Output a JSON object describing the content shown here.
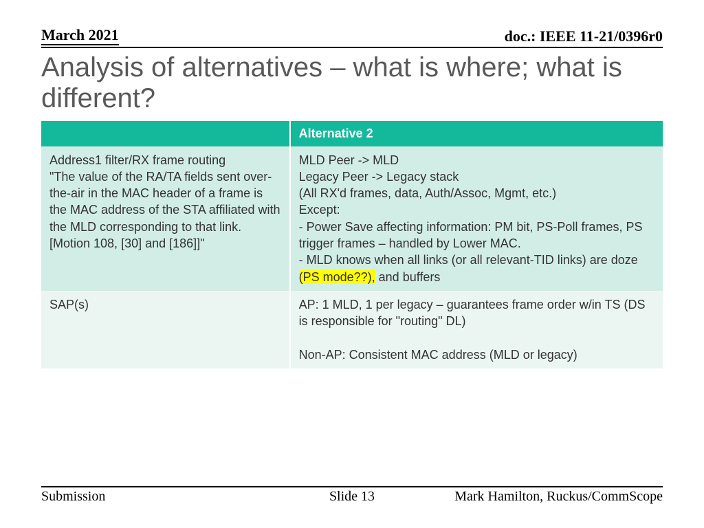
{
  "header": {
    "date": "March 2021",
    "doc": "doc.: IEEE 11-21/0396r0"
  },
  "title": "Analysis of alternatives – what is where; what is different?",
  "table": {
    "header": {
      "col1": "",
      "col2": "Alternative 2"
    },
    "rows": [
      {
        "col1_line1": "Address1 filter/RX frame routing",
        "col1_rest": "\"The value of the RA/TA fields sent over-the-air in the MAC header of a frame is the MAC address of the STA affiliated with the MLD corresponding to that link. [Motion 108, [30] and [186]]\"",
        "col2_l1": "MLD Peer -> MLD",
        "col2_l2": "Legacy Peer -> Legacy stack",
        "col2_l3": "(All RX'd frames, data, Auth/Assoc, Mgmt, etc.)",
        "col2_l4": "Except:",
        "col2_l5": "- Power Save affecting information: PM bit, PS-Poll frames, PS trigger frames – handled by Lower MAC.",
        "col2_l6a": "- MLD knows when all links (or all relevant-TID links) are doze ",
        "col2_l6_highlight": "(PS mode??),",
        "col2_l6b": " and buffers"
      },
      {
        "col1": "SAP(s)",
        "col2_l1": "AP: 1 MLD, 1 per legacy – guarantees frame order w/in TS (DS is responsible for \"routing\" DL)",
        "col2_l2": "Non-AP: Consistent MAC address (MLD or legacy)"
      }
    ]
  },
  "footer": {
    "left": "Submission",
    "mid": "Slide 13",
    "right": "Mark Hamilton, Ruckus/CommScope"
  },
  "colors": {
    "header_bg": "#14b89b",
    "row_a_bg": "#d2ede6",
    "row_b_bg": "#ebf6f3",
    "title_color": "#595959",
    "highlight": "#ffff00"
  }
}
